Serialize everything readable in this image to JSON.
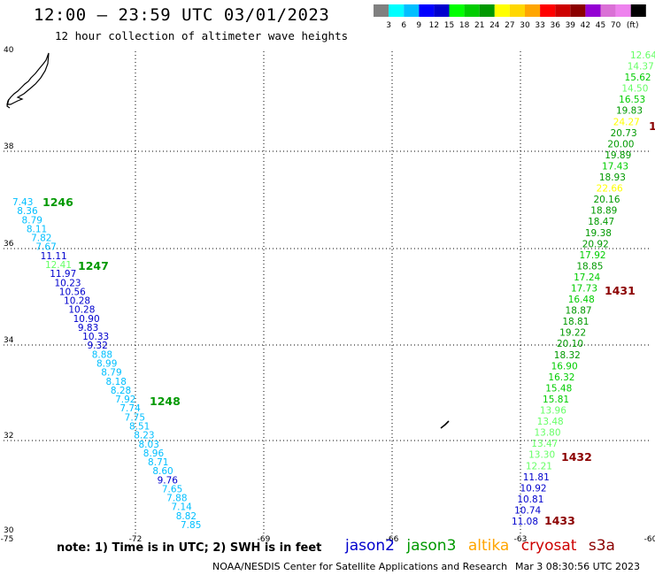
{
  "header": {
    "title": "12:00 — 23:59 UTC 03/01/2023",
    "subtitle": "12 hour collection of altimeter wave heights"
  },
  "colorbar": {
    "unit": "(ft)",
    "swatches": [
      "#808080",
      "#00ffff",
      "#00bfff",
      "#0000ff",
      "#0000cd",
      "#00ff00",
      "#00cd00",
      "#009900",
      "#ffff00",
      "#ffd700",
      "#ffa500",
      "#ff0000",
      "#cd0000",
      "#8b0000",
      "#9400d3",
      "#da70d6",
      "#ee82ee",
      "#000000"
    ],
    "labels": [
      "3",
      "6",
      "9",
      "12",
      "15",
      "18",
      "21",
      "24",
      "27",
      "30",
      "33",
      "36",
      "39",
      "42",
      "45",
      "70"
    ]
  },
  "axes": {
    "lon_labels": [
      "-75",
      "-72",
      "-69",
      "-66",
      "-63",
      "-60"
    ],
    "lat_labels": [
      "40",
      "38",
      "36",
      "34",
      "32",
      "30"
    ]
  },
  "track_west": [
    {
      "t": "7.43",
      "c": "#00bfff"
    },
    {
      "t": "8.36",
      "c": "#00bfff"
    },
    {
      "t": "8.79",
      "c": "#00bfff"
    },
    {
      "t": "8.11",
      "c": "#00bfff"
    },
    {
      "t": "7.82",
      "c": "#00bfff"
    },
    {
      "t": "7.67",
      "c": "#00bfff"
    },
    {
      "t": "11.11",
      "c": "#0000cd"
    },
    {
      "t": "12.41",
      "c": "#66ff66"
    },
    {
      "t": "11.97",
      "c": "#0000cd"
    },
    {
      "t": "10.23",
      "c": "#0000cd"
    },
    {
      "t": "10.56",
      "c": "#0000cd"
    },
    {
      "t": "10.28",
      "c": "#0000cd"
    },
    {
      "t": "10.28",
      "c": "#0000cd"
    },
    {
      "t": "10.90",
      "c": "#0000cd"
    },
    {
      "t": "9.83",
      "c": "#0000cd"
    },
    {
      "t": "10.33",
      "c": "#0000cd"
    },
    {
      "t": "9.32",
      "c": "#0000cd"
    },
    {
      "t": "8.88",
      "c": "#00bfff"
    },
    {
      "t": "8.99",
      "c": "#00bfff"
    },
    {
      "t": "8.79",
      "c": "#00bfff"
    },
    {
      "t": "8.18",
      "c": "#00bfff"
    },
    {
      "t": "8.28",
      "c": "#00bfff"
    },
    {
      "t": "7.92",
      "c": "#00bfff"
    },
    {
      "t": "7.74",
      "c": "#00bfff"
    },
    {
      "t": "7.75",
      "c": "#00bfff"
    },
    {
      "t": "8.51",
      "c": "#00bfff"
    },
    {
      "t": "8.23",
      "c": "#00bfff"
    },
    {
      "t": "8.03",
      "c": "#00bfff"
    },
    {
      "t": "8.96",
      "c": "#00bfff"
    },
    {
      "t": "8.71",
      "c": "#00bfff"
    },
    {
      "t": "8.60",
      "c": "#00bfff"
    },
    {
      "t": "9.76",
      "c": "#0000cd"
    },
    {
      "t": "7.65",
      "c": "#00bfff"
    },
    {
      "t": "7.88",
      "c": "#00bfff"
    },
    {
      "t": "7.14",
      "c": "#00bfff"
    },
    {
      "t": "8.82",
      "c": "#00bfff"
    },
    {
      "t": "7.85",
      "c": "#00bfff"
    }
  ],
  "track_east": [
    {
      "t": "12.64",
      "c": "#66ff66"
    },
    {
      "t": "14.37",
      "c": "#66ff66"
    },
    {
      "t": "15.62",
      "c": "#00cd00"
    },
    {
      "t": "14.50",
      "c": "#66ff66"
    },
    {
      "t": "16.53",
      "c": "#00cd00"
    },
    {
      "t": "19.83",
      "c": "#009900"
    },
    {
      "t": "24.27",
      "c": "#ffff00"
    },
    {
      "t": "20.73",
      "c": "#009900"
    },
    {
      "t": "20.00",
      "c": "#009900"
    },
    {
      "t": "19.89",
      "c": "#009900"
    },
    {
      "t": "17.43",
      "c": "#00cd00"
    },
    {
      "t": "18.93",
      "c": "#009900"
    },
    {
      "t": "22.66",
      "c": "#ffff00"
    },
    {
      "t": "20.16",
      "c": "#009900"
    },
    {
      "t": "18.89",
      "c": "#009900"
    },
    {
      "t": "18.47",
      "c": "#009900"
    },
    {
      "t": "19.38",
      "c": "#009900"
    },
    {
      "t": "20.92",
      "c": "#009900"
    },
    {
      "t": "17.92",
      "c": "#00cd00"
    },
    {
      "t": "18.85",
      "c": "#009900"
    },
    {
      "t": "17.24",
      "c": "#00cd00"
    },
    {
      "t": "17.73",
      "c": "#00cd00"
    },
    {
      "t": "16.48",
      "c": "#00cd00"
    },
    {
      "t": "18.87",
      "c": "#009900"
    },
    {
      "t": "18.81",
      "c": "#009900"
    },
    {
      "t": "19.22",
      "c": "#009900"
    },
    {
      "t": "20.10",
      "c": "#009900"
    },
    {
      "t": "18.32",
      "c": "#009900"
    },
    {
      "t": "16.90",
      "c": "#00cd00"
    },
    {
      "t": "16.32",
      "c": "#00cd00"
    },
    {
      "t": "15.48",
      "c": "#00cd00"
    },
    {
      "t": "15.81",
      "c": "#00cd00"
    },
    {
      "t": "13.96",
      "c": "#66ff66"
    },
    {
      "t": "13.48",
      "c": "#66ff66"
    },
    {
      "t": "13.80",
      "c": "#66ff66"
    },
    {
      "t": "13.47",
      "c": "#66ff66"
    },
    {
      "t": "13.30",
      "c": "#66ff66"
    },
    {
      "t": "12.21",
      "c": "#66ff66"
    },
    {
      "t": "11.81",
      "c": "#0000cd"
    },
    {
      "t": "10.92",
      "c": "#0000cd"
    },
    {
      "t": "10.81",
      "c": "#0000cd"
    },
    {
      "t": "10.74",
      "c": "#0000cd"
    },
    {
      "t": "11.08",
      "c": "#0000cd"
    }
  ],
  "time_labels": [
    {
      "t": "1246",
      "c": "#009900"
    },
    {
      "t": "1247",
      "c": "#009900"
    },
    {
      "t": "1248",
      "c": "#009900"
    },
    {
      "t": "1431",
      "c": "#8b0000"
    },
    {
      "t": "1432",
      "c": "#8b0000"
    },
    {
      "t": "1433",
      "c": "#8b0000"
    },
    {
      "t": "1",
      "c": "#8b0000"
    }
  ],
  "footer": {
    "note": "note: 1) Time is in UTC; 2) SWH is in feet",
    "satellites": [
      {
        "name": "jason2",
        "color": "#0000cd"
      },
      {
        "name": "jason3",
        "color": "#009900"
      },
      {
        "name": "altika",
        "color": "#ffa500"
      },
      {
        "name": "cryosat",
        "color": "#cd0000"
      },
      {
        "name": "s3a",
        "color": "#8b0000"
      }
    ],
    "credit": "NOAA/NESDIS Center for Satellite Applications and Research",
    "timestamp": "Mar  3 08:30:56 UTC 2023"
  }
}
